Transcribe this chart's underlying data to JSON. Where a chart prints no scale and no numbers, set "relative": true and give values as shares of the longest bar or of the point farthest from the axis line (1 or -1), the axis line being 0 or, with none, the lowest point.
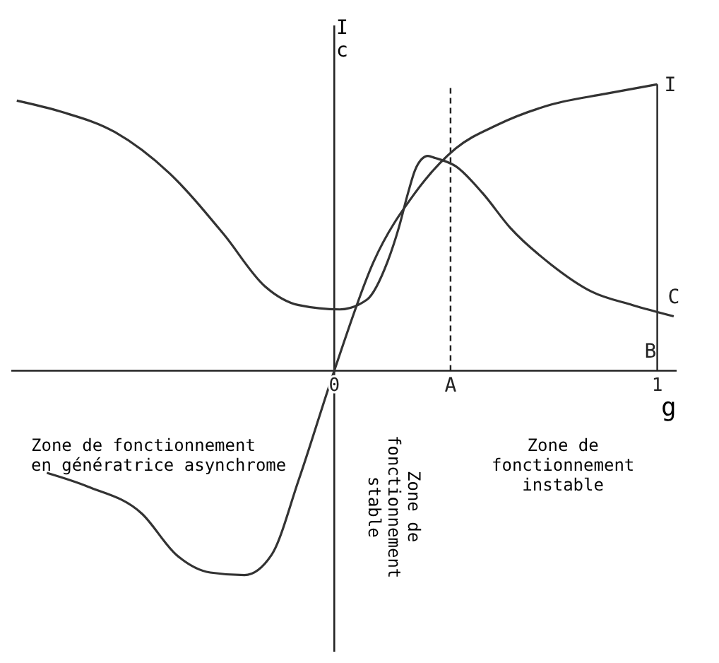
{
  "chart_data": {
    "type": "line",
    "relative": true,
    "xlabel": "g",
    "ylabel": "I c",
    "xlim": [
      -1,
      1.06
    ],
    "xticks": [
      0,
      1
    ],
    "marker": "none",
    "line_style": "solid",
    "series": [
      {
        "name": "C",
        "color": "#333333",
        "x": [
          -0.983,
          -0.848,
          -0.679,
          -0.511,
          -0.342,
          -0.215,
          -0.11,
          0.017,
          0.101,
          0.165,
          0.2,
          0.228,
          0.25,
          0.27,
          0.29,
          0.312,
          0.376,
          0.46,
          0.544,
          0.671,
          0.797,
          0.924,
          1.051
        ],
        "values": [
          0.943,
          0.905,
          0.833,
          0.69,
          0.476,
          0.295,
          0.229,
          0.214,
          0.248,
          0.381,
          0.5,
          0.619,
          0.7,
          0.738,
          0.75,
          0.743,
          0.714,
          0.619,
          0.5,
          0.371,
          0.276,
          0.229,
          0.19
        ]
      },
      {
        "name": "I",
        "color": "#333333",
        "x": [
          -0.89,
          -0.763,
          -0.595,
          -0.489,
          -0.384,
          -0.278,
          -0.194,
          -0.11,
          0,
          0.122,
          0.249,
          0.376,
          0.502,
          0.671,
          0.84,
          1
        ],
        "values": [
          -0.357,
          -0.405,
          -0.5,
          -0.643,
          -0.705,
          -0.714,
          -0.643,
          -0.381,
          0,
          0.381,
          0.619,
          0.776,
          0.857,
          0.929,
          0.967,
          1
        ]
      }
    ],
    "ref_lines": [
      {
        "axis": "x",
        "value": 0.36,
        "label": "A",
        "line_style": "dashed"
      },
      {
        "axis": "x",
        "value": 1,
        "label": "B",
        "line_style": "solid"
      }
    ],
    "annotations": [
      "Zone de fonctionnement\nen génératrice asynchrome",
      "Zone de\nfonctionnement\nstable",
      "Zone de\nfonctionnement\ninstable"
    ]
  }
}
